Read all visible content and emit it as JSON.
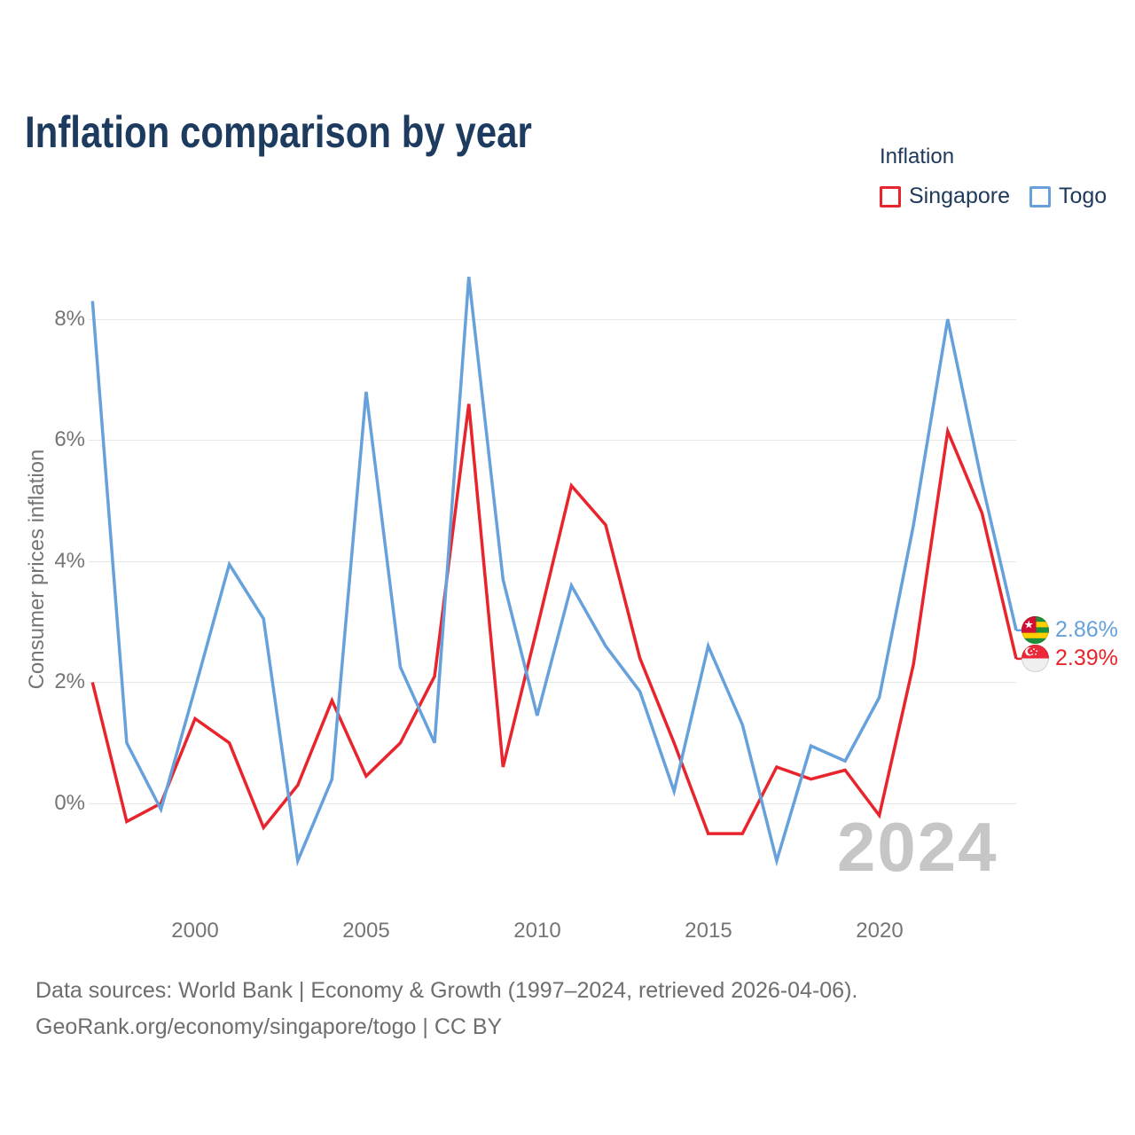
{
  "title": "Inflation comparison by year",
  "legend": {
    "title": "Inflation",
    "items": [
      {
        "label": "Singapore",
        "color": "#e8242c"
      },
      {
        "label": "Togo",
        "color": "#66a1dc"
      }
    ]
  },
  "y_axis": {
    "title": "Consumer prices inflation",
    "ticks": [
      "0%",
      "2%",
      "4%",
      "6%",
      "8%"
    ]
  },
  "x_axis": {
    "ticks": [
      "2000",
      "2005",
      "2010",
      "2015",
      "2020"
    ]
  },
  "end_labels": [
    {
      "series": "Togo",
      "value": "2.86%",
      "color": "#66a1dc",
      "flag": "togo-flag"
    },
    {
      "series": "Singapore",
      "value": "2.39%",
      "color": "#e8242c",
      "flag": "singapore-flag"
    }
  ],
  "watermark": "2024",
  "footer": {
    "line1": "Data sources: World Bank | Economy & Growth (1997–2024, retrieved 2026-04-06).",
    "line2": "GeoRank.org/economy/singapore/togo | CC BY"
  },
  "chart_data": {
    "type": "line",
    "title": "Inflation comparison by year",
    "xlabel": "",
    "ylabel": "Consumer prices inflation",
    "x": [
      1997,
      1998,
      1999,
      2000,
      2001,
      2002,
      2003,
      2004,
      2005,
      2006,
      2007,
      2008,
      2009,
      2010,
      2011,
      2012,
      2013,
      2014,
      2015,
      2016,
      2017,
      2018,
      2019,
      2020,
      2021,
      2022,
      2023,
      2024
    ],
    "series": [
      {
        "name": "Singapore",
        "color": "#e8242c",
        "values": [
          2.0,
          -0.3,
          0.0,
          1.4,
          1.0,
          -0.4,
          0.3,
          1.7,
          0.45,
          1.0,
          2.1,
          6.6,
          0.6,
          2.9,
          5.25,
          4.6,
          2.4,
          1.0,
          -0.5,
          -0.5,
          0.6,
          0.4,
          0.55,
          -0.2,
          2.3,
          6.15,
          4.8,
          2.39
        ]
      },
      {
        "name": "Togo",
        "color": "#66a1dc",
        "values": [
          8.3,
          1.0,
          -0.1,
          1.9,
          3.95,
          3.05,
          -0.95,
          0.4,
          6.8,
          2.25,
          1.0,
          8.7,
          3.7,
          1.45,
          3.6,
          2.6,
          1.85,
          0.2,
          2.6,
          1.3,
          -0.95,
          0.95,
          0.7,
          1.75,
          4.6,
          8.0,
          5.3,
          2.86
        ]
      }
    ],
    "ylim": [
      -1.5,
      9.2
    ],
    "xlim": [
      1997,
      2024
    ],
    "y_tick_values": [
      0,
      2,
      4,
      6,
      8
    ],
    "x_tick_values": [
      2000,
      2005,
      2010,
      2015,
      2020
    ],
    "grid": "horizontal",
    "legend_position": "top-right"
  }
}
